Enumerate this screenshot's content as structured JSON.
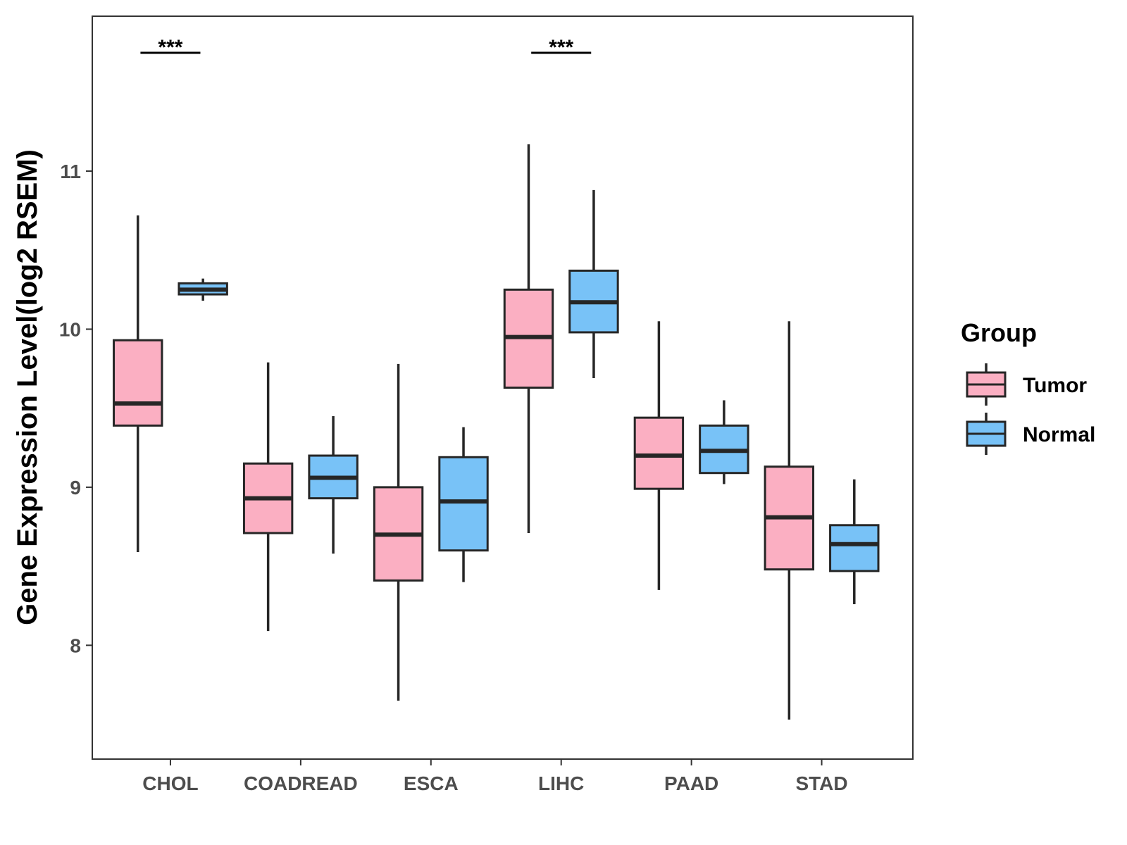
{
  "chart_data": {
    "type": "boxplot",
    "title": "",
    "xlabel": "",
    "ylabel": "Gene Expression Level(log2 RSEM)",
    "ylim": [
      7.28,
      11.98
    ],
    "yticks": [
      8,
      9,
      10,
      11
    ],
    "grid": false,
    "legend": {
      "title": "Group",
      "position": "right",
      "entries": [
        "Tumor",
        "Normal"
      ]
    },
    "categories": [
      "CHOL",
      "COADREAD",
      "ESCA",
      "LIHC",
      "PAAD",
      "STAD"
    ],
    "series": [
      {
        "name": "Tumor",
        "color": "#FBAFC2",
        "boxes": [
          {
            "min": 8.59,
            "q1": 9.39,
            "median": 9.53,
            "q3": 9.93,
            "max": 10.72
          },
          {
            "min": 8.09,
            "q1": 8.71,
            "median": 8.93,
            "q3": 9.15,
            "max": 9.79
          },
          {
            "min": 7.65,
            "q1": 8.41,
            "median": 8.7,
            "q3": 9.0,
            "max": 9.78
          },
          {
            "min": 8.71,
            "q1": 9.63,
            "median": 9.95,
            "q3": 10.25,
            "max": 11.17
          },
          {
            "min": 8.35,
            "q1": 8.99,
            "median": 9.2,
            "q3": 9.44,
            "max": 10.05
          },
          {
            "min": 7.53,
            "q1": 8.48,
            "median": 8.81,
            "q3": 9.13,
            "max": 10.05
          }
        ]
      },
      {
        "name": "Normal",
        "color": "#78C2F7",
        "boxes": [
          {
            "min": 10.18,
            "q1": 10.22,
            "median": 10.25,
            "q3": 10.29,
            "max": 10.32
          },
          {
            "min": 8.58,
            "q1": 8.93,
            "median": 9.06,
            "q3": 9.2,
            "max": 9.45
          },
          {
            "min": 8.4,
            "q1": 8.6,
            "median": 8.91,
            "q3": 9.19,
            "max": 9.38
          },
          {
            "min": 9.69,
            "q1": 9.98,
            "median": 10.17,
            "q3": 10.37,
            "max": 10.88
          },
          {
            "min": 9.02,
            "q1": 9.09,
            "median": 9.23,
            "q3": 9.39,
            "max": 9.55
          },
          {
            "min": 8.26,
            "q1": 8.47,
            "median": 8.64,
            "q3": 8.76,
            "max": 9.05
          }
        ]
      }
    ],
    "annotations": [
      {
        "category": "CHOL",
        "label": "***"
      },
      {
        "category": "LIHC",
        "label": "***"
      }
    ]
  }
}
